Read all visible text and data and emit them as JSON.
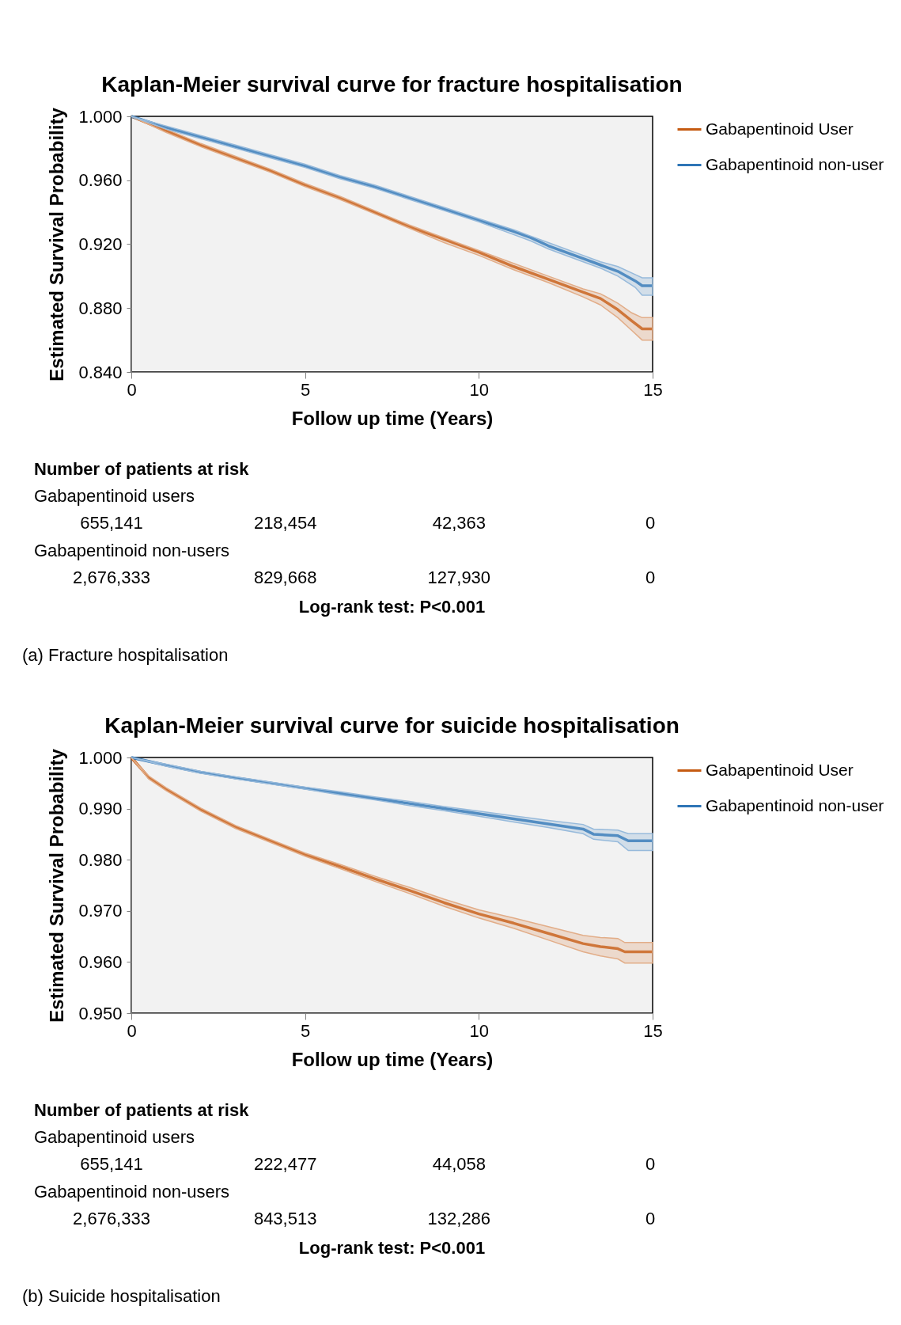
{
  "chart_data": [
    {
      "type": "line",
      "title": "Kaplan-Meier survival curve for fracture hospitalisation",
      "xlabel": "Follow up time (Years)",
      "ylabel": "Estimated Survival Probability",
      "xlim": [
        0,
        15
      ],
      "xticks": [
        0,
        5,
        10,
        15
      ],
      "ylim": [
        0.84,
        1.0
      ],
      "yticks": [
        {
          "value": 0.84,
          "label": "0.840"
        },
        {
          "value": 0.88,
          "label": "0.880"
        },
        {
          "value": 0.92,
          "label": "0.920"
        },
        {
          "value": 0.96,
          "label": "0.960"
        },
        {
          "value": 1.0,
          "label": "1.000"
        }
      ],
      "legend": "right",
      "series": [
        {
          "name": "Gabapentinoid User",
          "color": "#c55a11",
          "x": [
            0,
            1,
            2,
            3,
            4,
            5,
            6,
            7,
            8,
            9,
            10,
            11,
            12,
            13,
            13.5,
            14,
            14.4,
            14.7,
            15
          ],
          "values": [
            1,
            0.991,
            0.982,
            0.974,
            0.966,
            0.957,
            0.949,
            0.94,
            0.931,
            0.923,
            0.915,
            0.906,
            0.898,
            0.89,
            0.886,
            0.879,
            0.872,
            0.867,
            0.867
          ],
          "lower": [
            1,
            0.99,
            0.981,
            0.973,
            0.965,
            0.956,
            0.948,
            0.939,
            0.93,
            0.921,
            0.913,
            0.904,
            0.896,
            0.887,
            0.882,
            0.874,
            0.866,
            0.86,
            0.86
          ],
          "upper": [
            1,
            0.992,
            0.983,
            0.975,
            0.967,
            0.958,
            0.95,
            0.941,
            0.932,
            0.924,
            0.916,
            0.908,
            0.9,
            0.892,
            0.889,
            0.883,
            0.877,
            0.874,
            0.874
          ]
        },
        {
          "name": "Gabapentinoid non-user",
          "color": "#2e75b6",
          "x": [
            0,
            1,
            2,
            3,
            4,
            5,
            6,
            7,
            8,
            9,
            10,
            11,
            11.5,
            12,
            13,
            13.5,
            14,
            14.5,
            14.7,
            15
          ],
          "values": [
            1,
            0.993,
            0.987,
            0.981,
            0.975,
            0.969,
            0.962,
            0.956,
            0.949,
            0.942,
            0.935,
            0.928,
            0.924,
            0.919,
            0.911,
            0.907,
            0.903,
            0.897,
            0.894,
            0.894
          ],
          "lower": [
            1,
            0.992,
            0.986,
            0.98,
            0.974,
            0.968,
            0.961,
            0.955,
            0.948,
            0.941,
            0.934,
            0.926,
            0.922,
            0.917,
            0.909,
            0.905,
            0.9,
            0.893,
            0.888,
            0.888
          ],
          "upper": [
            1,
            0.994,
            0.988,
            0.982,
            0.976,
            0.97,
            0.963,
            0.957,
            0.95,
            0.943,
            0.936,
            0.929,
            0.925,
            0.921,
            0.913,
            0.909,
            0.906,
            0.901,
            0.899,
            0.899
          ]
        }
      ],
      "annotations": [
        "Number of patients at risk",
        "Gabapentinoid users",
        "655,141",
        "218,454",
        "42,363",
        "0",
        "Gabapentinoid non-users",
        "2,676,333",
        "829,668",
        "127,930",
        "0",
        "Log-rank test: P<0.001",
        "(a) Fracture hospitalisation"
      ]
    },
    {
      "type": "line",
      "title": "Kaplan-Meier survival curve for suicide hospitalisation",
      "xlabel": "Follow up time (Years)",
      "ylabel": "Estimated Survival Probability",
      "xlim": [
        0,
        15
      ],
      "xticks": [
        0,
        5,
        10,
        15
      ],
      "ylim": [
        0.95,
        1.0
      ],
      "yticks": [
        {
          "value": 0.95,
          "label": "0.950"
        },
        {
          "value": 0.96,
          "label": "0.960"
        },
        {
          "value": 0.97,
          "label": "0.970"
        },
        {
          "value": 0.98,
          "label": "0.980"
        },
        {
          "value": 0.99,
          "label": "0.990"
        },
        {
          "value": 1.0,
          "label": "1.000"
        }
      ],
      "legend": "right",
      "series": [
        {
          "name": "Gabapentinoid User",
          "color": "#c55a11",
          "x": [
            0,
            0.5,
            1,
            2,
            3,
            4,
            5,
            6,
            7,
            8,
            9,
            10,
            11,
            12,
            13,
            13.5,
            14,
            14.2,
            15
          ],
          "values": [
            1,
            0.9961,
            0.9938,
            0.9898,
            0.9864,
            0.9837,
            0.981,
            0.9787,
            0.9763,
            0.974,
            0.9716,
            0.9694,
            0.9676,
            0.9656,
            0.9636,
            0.963,
            0.9626,
            0.962,
            0.962
          ],
          "lower": [
            1,
            0.9958,
            0.9935,
            0.9895,
            0.9861,
            0.9834,
            0.9807,
            0.9783,
            0.9758,
            0.9734,
            0.9709,
            0.9686,
            0.9666,
            0.9643,
            0.962,
            0.9612,
            0.9606,
            0.9598,
            0.9598
          ],
          "upper": [
            1,
            0.9964,
            0.9941,
            0.9901,
            0.9867,
            0.984,
            0.9813,
            0.9791,
            0.9768,
            0.9746,
            0.9723,
            0.9702,
            0.9686,
            0.9669,
            0.9652,
            0.9648,
            0.9646,
            0.9638,
            0.9638
          ]
        },
        {
          "name": "Gabapentinoid non-user",
          "color": "#2e75b6",
          "x": [
            0,
            1,
            2,
            3,
            4,
            5,
            6,
            7,
            8,
            9,
            10,
            11,
            12,
            13,
            13.3,
            14,
            14.3,
            15
          ],
          "values": [
            1,
            0.9985,
            0.9971,
            0.996,
            0.995,
            0.994,
            0.993,
            0.992,
            0.991,
            0.99,
            0.989,
            0.988,
            0.987,
            0.986,
            0.985,
            0.9847,
            0.9837,
            0.9837
          ],
          "lower": [
            1,
            0.9983,
            0.9969,
            0.9958,
            0.9948,
            0.9938,
            0.9927,
            0.9917,
            0.9906,
            0.9896,
            0.9885,
            0.9874,
            0.9863,
            0.9851,
            0.984,
            0.9835,
            0.9818,
            0.9818
          ],
          "upper": [
            1,
            0.9987,
            0.9973,
            0.9962,
            0.9952,
            0.9942,
            0.9933,
            0.9923,
            0.9914,
            0.9904,
            0.9895,
            0.9886,
            0.9877,
            0.9869,
            0.986,
            0.9858,
            0.9851,
            0.9851
          ]
        }
      ],
      "annotations": [
        "Number of patients at risk",
        "Gabapentinoid users",
        "655,141",
        "222,477",
        "44,058",
        "0",
        "Gabapentinoid non-users",
        "2,676,333",
        "843,513",
        "132,286",
        "0",
        "Log-rank test: P<0.001",
        "(b) Suicide hospitalisation"
      ]
    }
  ]
}
